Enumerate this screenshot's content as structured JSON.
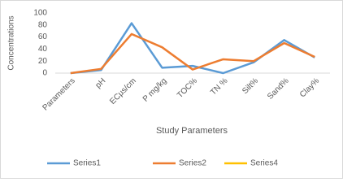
{
  "chart_data": {
    "type": "line",
    "x_label": "Study Parameters",
    "y_label": "Concentrations",
    "categories": [
      "Parameters",
      "pH",
      "ECμs/cm",
      "P mg/kg",
      "TOC%",
      "TN %",
      "Silt%",
      "Sand%",
      "Clay%"
    ],
    "series": [
      {
        "name": "Series1",
        "color": "#5b9bd5",
        "values": [
          0,
          5,
          83,
          9,
          12,
          0,
          18,
          55,
          26
        ]
      },
      {
        "name": "Series2",
        "color": "#ed7d31",
        "values": [
          0,
          7,
          65,
          43,
          6,
          23,
          20,
          50,
          27
        ]
      },
      {
        "name": "Series4",
        "color": "#ffc000",
        "values": [
          null,
          null,
          null,
          null,
          null,
          null,
          null,
          null,
          null
        ]
      }
    ],
    "ylim": [
      0,
      100
    ],
    "yticks": [
      0,
      20,
      40,
      60,
      80,
      100
    ],
    "grid": false,
    "legend": "bottom"
  }
}
